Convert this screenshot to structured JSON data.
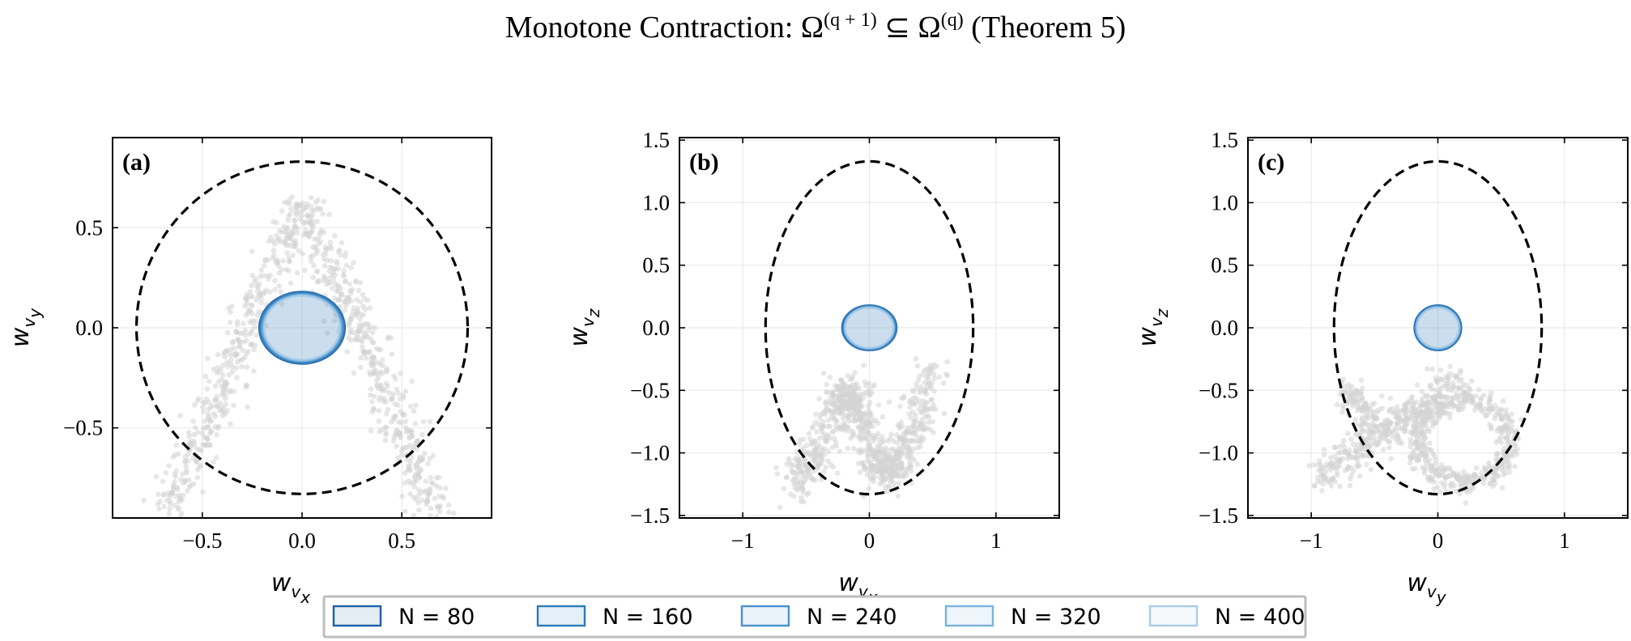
{
  "figure": {
    "title_main": "Monotone Contraction: Ω",
    "title_sup1": "(q + 1)",
    "title_mid": " ⊆ Ω",
    "title_sup2": "(q)",
    "title_tail": " (Theorem 5)"
  },
  "colors": {
    "background": "#ffffff",
    "grid": "#e9e9e9",
    "scatter": "#d3d3d3",
    "bound_ellipse": "#000000",
    "series": [
      "#1f5fa6",
      "#2b7bba",
      "#4a93cb",
      "#7ab2db",
      "#a9cbe8"
    ]
  },
  "legend": {
    "position": "bottom-center",
    "items": [
      {
        "label": "N = 80"
      },
      {
        "label": "N = 160"
      },
      {
        "label": "N = 240"
      },
      {
        "label": "N = 320"
      },
      {
        "label": "N = 400"
      }
    ]
  },
  "chart_data": [
    {
      "type": "scatter",
      "panel": "(a)",
      "xlabel": "w",
      "xlabel_sub": "v",
      "xlabel_subsub": "x",
      "ylabel": "w",
      "ylabel_sub": "v",
      "ylabel_subsub": "y",
      "xlim": [
        -0.95,
        0.95
      ],
      "ylim": [
        -0.95,
        0.95
      ],
      "xticks": [
        -0.5,
        0.0,
        0.5
      ],
      "xtick_labels": [
        "−0.5",
        "0.0",
        "0.5"
      ],
      "yticks": [
        -0.5,
        0.0,
        0.5
      ],
      "ytick_labels": [
        "−0.5",
        "0.0",
        "0.5"
      ],
      "grid": true,
      "scatter_shape": "inverted-V",
      "bound_ellipse": {
        "center": [
          0,
          0
        ],
        "radii": [
          0.83,
          0.83
        ],
        "style": "dashed"
      },
      "series": [
        {
          "name": "N = 80",
          "center": [
            0,
            0
          ],
          "radii": [
            0.215,
            0.18
          ]
        },
        {
          "name": "N = 160",
          "center": [
            0,
            0
          ],
          "radii": [
            0.21,
            0.175
          ]
        },
        {
          "name": "N = 240",
          "center": [
            0,
            0
          ],
          "radii": [
            0.2,
            0.17
          ]
        },
        {
          "name": "N = 320",
          "center": [
            0,
            0
          ],
          "radii": [
            0.195,
            0.165
          ]
        },
        {
          "name": "N = 400",
          "center": [
            0,
            0
          ],
          "radii": [
            0.19,
            0.16
          ]
        }
      ]
    },
    {
      "type": "scatter",
      "panel": "(b)",
      "xlabel": "w",
      "xlabel_sub": "v",
      "xlabel_subsub": "x",
      "ylabel": "w",
      "ylabel_sub": "v",
      "ylabel_subsub": "z",
      "xlim": [
        -1.5,
        1.5
      ],
      "ylim": [
        -1.52,
        1.52
      ],
      "xticks": [
        -1,
        0,
        1
      ],
      "xtick_labels": [
        "−1",
        "0",
        "1"
      ],
      "yticks": [
        -1.5,
        -1.0,
        -0.5,
        0.0,
        0.5,
        1.0,
        1.5
      ],
      "ytick_labels": [
        "−1.5",
        "−1.0",
        "−0.5",
        "0.0",
        "0.5",
        "1.0",
        "1.5"
      ],
      "grid": true,
      "scatter_shape": "M",
      "bound_ellipse": {
        "center": [
          0,
          0
        ],
        "radii": [
          0.82,
          1.33
        ],
        "style": "dashed"
      },
      "series": [
        {
          "name": "N = 80",
          "center": [
            0,
            0
          ],
          "radii": [
            0.215,
            0.18
          ]
        },
        {
          "name": "N = 160",
          "center": [
            0,
            0
          ],
          "radii": [
            0.21,
            0.175
          ]
        },
        {
          "name": "N = 240",
          "center": [
            0,
            0
          ],
          "radii": [
            0.2,
            0.17
          ]
        },
        {
          "name": "N = 320",
          "center": [
            0,
            0
          ],
          "radii": [
            0.195,
            0.165
          ]
        },
        {
          "name": "N = 400",
          "center": [
            0,
            0
          ],
          "radii": [
            0.19,
            0.16
          ]
        }
      ]
    },
    {
      "type": "scatter",
      "panel": "(c)",
      "xlabel": "w",
      "xlabel_sub": "v",
      "xlabel_subsub": "y",
      "ylabel": "w",
      "ylabel_sub": "v",
      "ylabel_subsub": "z",
      "xlim": [
        -1.5,
        1.5
      ],
      "ylim": [
        -1.52,
        1.52
      ],
      "xticks": [
        -1,
        0,
        1
      ],
      "xtick_labels": [
        "−1",
        "0",
        "1"
      ],
      "yticks": [
        -1.5,
        -1.0,
        -0.5,
        0.0,
        0.5,
        1.0,
        1.5
      ],
      "ytick_labels": [
        "−1.5",
        "−1.0",
        "−0.5",
        "0.0",
        "0.5",
        "1.0",
        "1.5"
      ],
      "grid": true,
      "scatter_shape": "alpha-loop",
      "bound_ellipse": {
        "center": [
          0,
          0
        ],
        "radii": [
          0.82,
          1.33
        ],
        "style": "dashed"
      },
      "series": [
        {
          "name": "N = 80",
          "center": [
            0,
            0
          ],
          "radii": [
            0.185,
            0.18
          ]
        },
        {
          "name": "N = 160",
          "center": [
            0,
            0
          ],
          "radii": [
            0.18,
            0.175
          ]
        },
        {
          "name": "N = 240",
          "center": [
            0,
            0
          ],
          "radii": [
            0.175,
            0.17
          ]
        },
        {
          "name": "N = 320",
          "center": [
            0,
            0
          ],
          "radii": [
            0.17,
            0.165
          ]
        },
        {
          "name": "N = 400",
          "center": [
            0,
            0
          ],
          "radii": [
            0.165,
            0.16
          ]
        }
      ]
    }
  ]
}
